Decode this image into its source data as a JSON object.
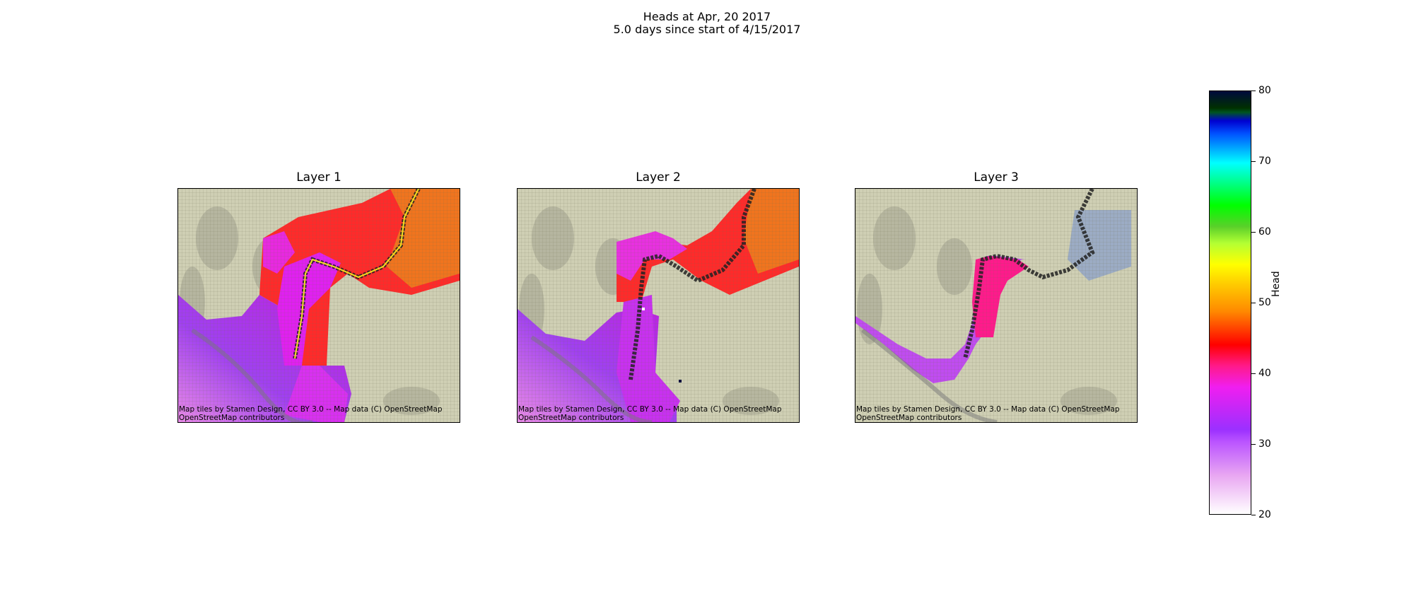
{
  "figure": {
    "title_line1": "Heads at Apr, 20 2017",
    "title_line2": "5.0 days since start of 4/15/2017"
  },
  "panels": [
    {
      "title": "Layer 1",
      "attribution_line1": "Map tiles by Stamen Design, CC BY 3.0 -- Map data (C) OpenStreetMap",
      "attribution_line2": "OpenStreetMap contributors"
    },
    {
      "title": "Layer 2",
      "attribution_line1": "Map tiles by Stamen Design, CC BY 3.0 -- Map data (C) OpenStreetMap",
      "attribution_line2": "OpenStreetMap contributors"
    },
    {
      "title": "Layer 3",
      "attribution_line1": "Map tiles by Stamen Design, CC BY 3.0 -- Map data (C) OpenStreetMap",
      "attribution_line2": "OpenStreetMap contributors"
    }
  ],
  "colorbar": {
    "label": "Head",
    "min": 20,
    "max": 80,
    "ticks": [
      "20",
      "30",
      "40",
      "50",
      "60",
      "70",
      "80"
    ],
    "colors": {
      "20": "#ffffff",
      "30": "#9b30ff",
      "40": "#ff0000",
      "50": "#ffff00",
      "60": "#00ff00",
      "70": "#00ffff",
      "80": "#000a3c"
    }
  }
}
